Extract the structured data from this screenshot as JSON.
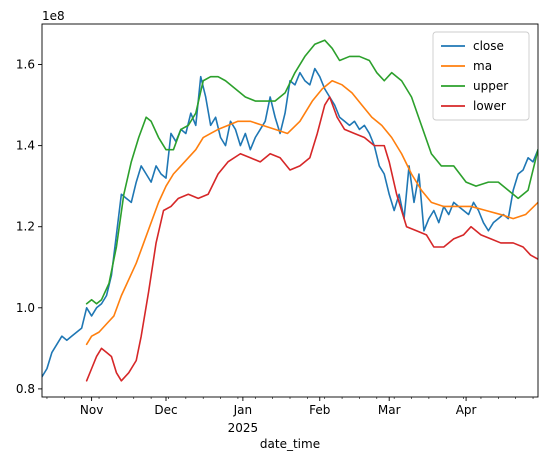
{
  "chart_data": {
    "type": "line",
    "title": "",
    "xlabel": "date_time",
    "ylabel": "",
    "y_offset_label": "1e8",
    "x_tick_labels": [
      "Nov",
      "Dec",
      "Jan",
      "Feb",
      "Mar",
      "Apr"
    ],
    "x_tick_dates": [
      "2024-11-01",
      "2024-12-01",
      "2025-01-01",
      "2025-02-01",
      "2025-03-01",
      "2025-04-01"
    ],
    "x_year_label": "2025",
    "xlim": [
      "2024-10-12",
      "2025-04-30"
    ],
    "y_ticks": [
      0.8,
      1.0,
      1.2,
      1.4,
      1.6
    ],
    "y_tick_labels": [
      "0.8",
      "1.0",
      "1.2",
      "1.4",
      "1.6"
    ],
    "ylim": [
      0.78,
      1.7
    ],
    "grid": false,
    "legend_position": "top-right",
    "series": [
      {
        "name": "close",
        "color": "#1f77b4",
        "points": [
          [
            "2024-10-12",
            0.83
          ],
          [
            "2024-10-14",
            0.85
          ],
          [
            "2024-10-16",
            0.89
          ],
          [
            "2024-10-18",
            0.91
          ],
          [
            "2024-10-20",
            0.93
          ],
          [
            "2024-10-22",
            0.92
          ],
          [
            "2024-10-24",
            0.93
          ],
          [
            "2024-10-26",
            0.94
          ],
          [
            "2024-10-28",
            0.95
          ],
          [
            "2024-10-30",
            1.0
          ],
          [
            "2024-11-01",
            0.98
          ],
          [
            "2024-11-03",
            1.0
          ],
          [
            "2024-11-05",
            1.01
          ],
          [
            "2024-11-07",
            1.03
          ],
          [
            "2024-11-09",
            1.08
          ],
          [
            "2024-11-11",
            1.18
          ],
          [
            "2024-11-13",
            1.28
          ],
          [
            "2024-11-15",
            1.27
          ],
          [
            "2024-11-17",
            1.26
          ],
          [
            "2024-11-19",
            1.31
          ],
          [
            "2024-11-21",
            1.35
          ],
          [
            "2024-11-23",
            1.33
          ],
          [
            "2024-11-25",
            1.31
          ],
          [
            "2024-11-27",
            1.35
          ],
          [
            "2024-11-29",
            1.33
          ],
          [
            "2024-12-01",
            1.32
          ],
          [
            "2024-12-03",
            1.43
          ],
          [
            "2024-12-05",
            1.41
          ],
          [
            "2024-12-07",
            1.44
          ],
          [
            "2024-12-09",
            1.43
          ],
          [
            "2024-12-11",
            1.48
          ],
          [
            "2024-12-13",
            1.45
          ],
          [
            "2024-12-15",
            1.57
          ],
          [
            "2024-12-17",
            1.52
          ],
          [
            "2024-12-19",
            1.45
          ],
          [
            "2024-12-21",
            1.47
          ],
          [
            "2024-12-23",
            1.42
          ],
          [
            "2024-12-25",
            1.4
          ],
          [
            "2024-12-27",
            1.46
          ],
          [
            "2024-12-29",
            1.44
          ],
          [
            "2024-12-31",
            1.4
          ],
          [
            "2025-01-02",
            1.43
          ],
          [
            "2025-01-04",
            1.39
          ],
          [
            "2025-01-06",
            1.42
          ],
          [
            "2025-01-08",
            1.44
          ],
          [
            "2025-01-10",
            1.46
          ],
          [
            "2025-01-12",
            1.52
          ],
          [
            "2025-01-14",
            1.47
          ],
          [
            "2025-01-16",
            1.43
          ],
          [
            "2025-01-18",
            1.48
          ],
          [
            "2025-01-20",
            1.56
          ],
          [
            "2025-01-22",
            1.55
          ],
          [
            "2025-01-24",
            1.58
          ],
          [
            "2025-01-26",
            1.56
          ],
          [
            "2025-01-28",
            1.55
          ],
          [
            "2025-01-30",
            1.59
          ],
          [
            "2025-02-01",
            1.57
          ],
          [
            "2025-02-03",
            1.54
          ],
          [
            "2025-02-05",
            1.52
          ],
          [
            "2025-02-07",
            1.5
          ],
          [
            "2025-02-09",
            1.47
          ],
          [
            "2025-02-11",
            1.46
          ],
          [
            "2025-02-13",
            1.45
          ],
          [
            "2025-02-15",
            1.46
          ],
          [
            "2025-02-17",
            1.44
          ],
          [
            "2025-02-19",
            1.45
          ],
          [
            "2025-02-21",
            1.43
          ],
          [
            "2025-02-23",
            1.4
          ],
          [
            "2025-02-25",
            1.35
          ],
          [
            "2025-02-27",
            1.33
          ],
          [
            "2025-03-01",
            1.28
          ],
          [
            "2025-03-03",
            1.24
          ],
          [
            "2025-03-05",
            1.28
          ],
          [
            "2025-03-07",
            1.22
          ],
          [
            "2025-03-09",
            1.35
          ],
          [
            "2025-03-11",
            1.26
          ],
          [
            "2025-03-13",
            1.33
          ],
          [
            "2025-03-15",
            1.19
          ],
          [
            "2025-03-17",
            1.22
          ],
          [
            "2025-03-19",
            1.24
          ],
          [
            "2025-03-21",
            1.21
          ],
          [
            "2025-03-23",
            1.25
          ],
          [
            "2025-03-25",
            1.23
          ],
          [
            "2025-03-27",
            1.26
          ],
          [
            "2025-03-29",
            1.25
          ],
          [
            "2025-03-31",
            1.24
          ],
          [
            "2025-04-02",
            1.23
          ],
          [
            "2025-04-04",
            1.26
          ],
          [
            "2025-04-06",
            1.24
          ],
          [
            "2025-04-08",
            1.21
          ],
          [
            "2025-04-10",
            1.19
          ],
          [
            "2025-04-12",
            1.21
          ],
          [
            "2025-04-14",
            1.22
          ],
          [
            "2025-04-16",
            1.23
          ],
          [
            "2025-04-18",
            1.22
          ],
          [
            "2025-04-20",
            1.29
          ],
          [
            "2025-04-22",
            1.33
          ],
          [
            "2025-04-24",
            1.34
          ],
          [
            "2025-04-26",
            1.37
          ],
          [
            "2025-04-28",
            1.36
          ],
          [
            "2025-04-30",
            1.39
          ]
        ]
      },
      {
        "name": "ma",
        "color": "#ff7f0e",
        "points": [
          [
            "2024-10-30",
            0.91
          ],
          [
            "2024-11-01",
            0.93
          ],
          [
            "2024-11-04",
            0.94
          ],
          [
            "2024-11-07",
            0.96
          ],
          [
            "2024-11-10",
            0.98
          ],
          [
            "2024-11-13",
            1.03
          ],
          [
            "2024-11-16",
            1.07
          ],
          [
            "2024-11-19",
            1.11
          ],
          [
            "2024-11-22",
            1.16
          ],
          [
            "2024-11-25",
            1.21
          ],
          [
            "2024-11-28",
            1.26
          ],
          [
            "2024-12-01",
            1.3
          ],
          [
            "2024-12-04",
            1.33
          ],
          [
            "2024-12-07",
            1.35
          ],
          [
            "2024-12-10",
            1.37
          ],
          [
            "2024-12-13",
            1.39
          ],
          [
            "2024-12-16",
            1.42
          ],
          [
            "2024-12-19",
            1.43
          ],
          [
            "2024-12-22",
            1.44
          ],
          [
            "2024-12-26",
            1.45
          ],
          [
            "2024-12-30",
            1.46
          ],
          [
            "2025-01-04",
            1.46
          ],
          [
            "2025-01-09",
            1.45
          ],
          [
            "2025-01-14",
            1.44
          ],
          [
            "2025-01-19",
            1.43
          ],
          [
            "2025-01-24",
            1.46
          ],
          [
            "2025-01-29",
            1.51
          ],
          [
            "2025-02-02",
            1.54
          ],
          [
            "2025-02-06",
            1.56
          ],
          [
            "2025-02-10",
            1.55
          ],
          [
            "2025-02-14",
            1.53
          ],
          [
            "2025-02-18",
            1.5
          ],
          [
            "2025-02-22",
            1.47
          ],
          [
            "2025-02-26",
            1.45
          ],
          [
            "2025-03-02",
            1.42
          ],
          [
            "2025-03-06",
            1.38
          ],
          [
            "2025-03-10",
            1.33
          ],
          [
            "2025-03-14",
            1.29
          ],
          [
            "2025-03-18",
            1.26
          ],
          [
            "2025-03-23",
            1.25
          ],
          [
            "2025-03-28",
            1.25
          ],
          [
            "2025-04-03",
            1.25
          ],
          [
            "2025-04-09",
            1.24
          ],
          [
            "2025-04-15",
            1.23
          ],
          [
            "2025-04-20",
            1.22
          ],
          [
            "2025-04-25",
            1.23
          ],
          [
            "2025-04-30",
            1.26
          ]
        ]
      },
      {
        "name": "upper",
        "color": "#2ca02c",
        "points": [
          [
            "2024-10-30",
            1.01
          ],
          [
            "2024-11-01",
            1.02
          ],
          [
            "2024-11-03",
            1.01
          ],
          [
            "2024-11-05",
            1.02
          ],
          [
            "2024-11-08",
            1.06
          ],
          [
            "2024-11-11",
            1.15
          ],
          [
            "2024-11-14",
            1.28
          ],
          [
            "2024-11-17",
            1.36
          ],
          [
            "2024-11-20",
            1.42
          ],
          [
            "2024-11-23",
            1.47
          ],
          [
            "2024-11-25",
            1.46
          ],
          [
            "2024-11-28",
            1.42
          ],
          [
            "2024-12-01",
            1.39
          ],
          [
            "2024-12-04",
            1.39
          ],
          [
            "2024-12-07",
            1.44
          ],
          [
            "2024-12-10",
            1.45
          ],
          [
            "2024-12-13",
            1.48
          ],
          [
            "2024-12-16",
            1.56
          ],
          [
            "2024-12-19",
            1.57
          ],
          [
            "2024-12-22",
            1.57
          ],
          [
            "2024-12-25",
            1.56
          ],
          [
            "2024-12-29",
            1.54
          ],
          [
            "2025-01-02",
            1.52
          ],
          [
            "2025-01-06",
            1.51
          ],
          [
            "2025-01-10",
            1.51
          ],
          [
            "2025-01-14",
            1.51
          ],
          [
            "2025-01-18",
            1.53
          ],
          [
            "2025-01-22",
            1.58
          ],
          [
            "2025-01-26",
            1.62
          ],
          [
            "2025-01-30",
            1.65
          ],
          [
            "2025-02-03",
            1.66
          ],
          [
            "2025-02-06",
            1.64
          ],
          [
            "2025-02-09",
            1.61
          ],
          [
            "2025-02-13",
            1.62
          ],
          [
            "2025-02-17",
            1.62
          ],
          [
            "2025-02-21",
            1.61
          ],
          [
            "2025-02-24",
            1.58
          ],
          [
            "2025-02-27",
            1.56
          ],
          [
            "2025-03-02",
            1.58
          ],
          [
            "2025-03-06",
            1.56
          ],
          [
            "2025-03-10",
            1.52
          ],
          [
            "2025-03-14",
            1.45
          ],
          [
            "2025-03-18",
            1.38
          ],
          [
            "2025-03-22",
            1.35
          ],
          [
            "2025-03-27",
            1.35
          ],
          [
            "2025-04-01",
            1.31
          ],
          [
            "2025-04-05",
            1.3
          ],
          [
            "2025-04-10",
            1.31
          ],
          [
            "2025-04-14",
            1.31
          ],
          [
            "2025-04-18",
            1.29
          ],
          [
            "2025-04-22",
            1.27
          ],
          [
            "2025-04-26",
            1.29
          ],
          [
            "2025-04-30",
            1.39
          ]
        ]
      },
      {
        "name": "lower",
        "color": "#d62728",
        "points": [
          [
            "2024-10-30",
            0.82
          ],
          [
            "2024-11-01",
            0.85
          ],
          [
            "2024-11-03",
            0.88
          ],
          [
            "2024-11-05",
            0.9
          ],
          [
            "2024-11-07",
            0.89
          ],
          [
            "2024-11-09",
            0.88
          ],
          [
            "2024-11-11",
            0.84
          ],
          [
            "2024-11-13",
            0.82
          ],
          [
            "2024-11-16",
            0.84
          ],
          [
            "2024-11-19",
            0.87
          ],
          [
            "2024-11-21",
            0.93
          ],
          [
            "2024-11-24",
            1.04
          ],
          [
            "2024-11-27",
            1.16
          ],
          [
            "2024-11-30",
            1.24
          ],
          [
            "2024-12-03",
            1.25
          ],
          [
            "2024-12-06",
            1.27
          ],
          [
            "2024-12-10",
            1.28
          ],
          [
            "2024-12-14",
            1.27
          ],
          [
            "2024-12-18",
            1.28
          ],
          [
            "2024-12-22",
            1.33
          ],
          [
            "2024-12-26",
            1.36
          ],
          [
            "2024-12-31",
            1.38
          ],
          [
            "2025-01-04",
            1.37
          ],
          [
            "2025-01-08",
            1.36
          ],
          [
            "2025-01-12",
            1.38
          ],
          [
            "2025-01-16",
            1.37
          ],
          [
            "2025-01-20",
            1.34
          ],
          [
            "2025-01-24",
            1.35
          ],
          [
            "2025-01-28",
            1.37
          ],
          [
            "2025-01-31",
            1.43
          ],
          [
            "2025-02-03",
            1.5
          ],
          [
            "2025-02-05",
            1.52
          ],
          [
            "2025-02-08",
            1.47
          ],
          [
            "2025-02-11",
            1.44
          ],
          [
            "2025-02-15",
            1.43
          ],
          [
            "2025-02-19",
            1.42
          ],
          [
            "2025-02-23",
            1.4
          ],
          [
            "2025-02-27",
            1.4
          ],
          [
            "2025-03-01",
            1.36
          ],
          [
            "2025-03-04",
            1.28
          ],
          [
            "2025-03-08",
            1.2
          ],
          [
            "2025-03-12",
            1.19
          ],
          [
            "2025-03-16",
            1.18
          ],
          [
            "2025-03-19",
            1.15
          ],
          [
            "2025-03-23",
            1.15
          ],
          [
            "2025-03-27",
            1.17
          ],
          [
            "2025-03-31",
            1.18
          ],
          [
            "2025-04-03",
            1.2
          ],
          [
            "2025-04-07",
            1.18
          ],
          [
            "2025-04-11",
            1.17
          ],
          [
            "2025-04-15",
            1.16
          ],
          [
            "2025-04-20",
            1.16
          ],
          [
            "2025-04-24",
            1.15
          ],
          [
            "2025-04-27",
            1.13
          ],
          [
            "2025-04-30",
            1.12
          ]
        ]
      }
    ]
  }
}
